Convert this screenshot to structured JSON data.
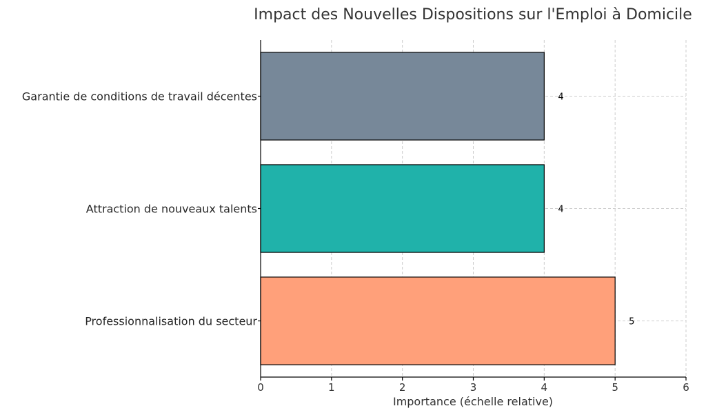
{
  "chart_data": {
    "type": "bar",
    "orientation": "horizontal",
    "title": "Impact des Nouvelles Dispositions sur l'Emploi à Domicile",
    "xlabel": "Importance (échelle relative)",
    "ylabel": "",
    "xlim": [
      0,
      6
    ],
    "xticks": [
      0,
      1,
      2,
      3,
      4,
      5,
      6
    ],
    "grid": true,
    "categories": [
      "Professionnalisation du secteur",
      "Attraction de nouveaux talents",
      "Garantie de conditions de travail décentes"
    ],
    "values": [
      5,
      4,
      4
    ],
    "data_labels": [
      "5",
      "4",
      "4"
    ],
    "colors": [
      "#ffa07a",
      "#20b2aa",
      "#778899"
    ]
  }
}
